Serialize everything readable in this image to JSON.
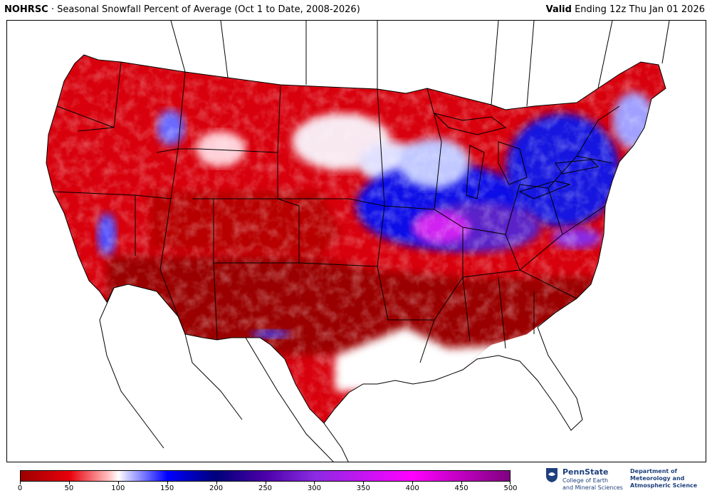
{
  "header": {
    "source": "NOHRSC",
    "separator": " · ",
    "title": "Seasonal Snowfall Percent of Average (Oct 1 to Date, 2008-2026)",
    "valid_label": "Valid",
    "valid_text": " Ending 12z Thu Jan 01 2026"
  },
  "colorbar": {
    "min": 0,
    "max": 500,
    "tick_labels": [
      "0",
      "50",
      "100",
      "150",
      "200",
      "250",
      "300",
      "350",
      "400",
      "450",
      "500"
    ],
    "tick_values": [
      0,
      50,
      100,
      150,
      200,
      250,
      300,
      350,
      400,
      450,
      500
    ],
    "stops": [
      {
        "value": 0,
        "color": "#9b0000"
      },
      {
        "value": 50,
        "color": "#e8000b"
      },
      {
        "value": 90,
        "color": "#ffc0c0"
      },
      {
        "value": 100,
        "color": "#ffffff"
      },
      {
        "value": 110,
        "color": "#c8c8ff"
      },
      {
        "value": 150,
        "color": "#0000ff"
      },
      {
        "value": 200,
        "color": "#00007a"
      },
      {
        "value": 250,
        "color": "#4b00a8"
      },
      {
        "value": 300,
        "color": "#8a2be2"
      },
      {
        "value": 400,
        "color": "#ff00ff"
      },
      {
        "value": 500,
        "color": "#800080"
      }
    ]
  },
  "logos": {
    "psu_name": "PennState",
    "psu_sub1": "College of Earth",
    "psu_sub2": "and Mineral Sciences",
    "dept_line1": "Department of",
    "dept_line2": "Meteorology and",
    "dept_line3": "Atmospheric Science"
  },
  "map": {
    "region": "Contiguous United States",
    "variable": "Seasonal snowfall percent of average",
    "colors": {
      "far_below": "#9b0000",
      "below": "#e8000b",
      "near_normal": "#ffffff",
      "above": "#0000ff",
      "well_above": "#4b00a8",
      "extreme": "#ff00ff"
    }
  }
}
